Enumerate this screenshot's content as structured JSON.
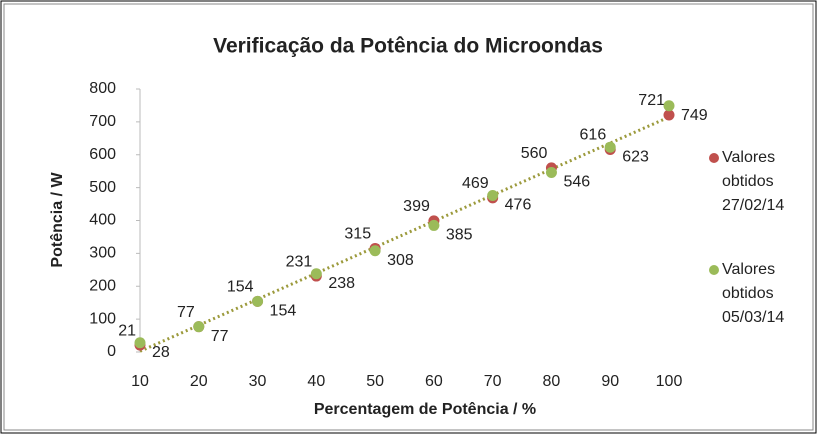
{
  "chart_data": {
    "type": "scatter",
    "title": "Verificação da Potência do Microondas",
    "x_label": "Percentagem de Potência / %",
    "y_label": "Potência / W",
    "x": [
      10,
      20,
      30,
      40,
      50,
      60,
      70,
      80,
      90,
      100
    ],
    "series": [
      {
        "name": "Valores obtidos 27/02/14",
        "color": "#c0504d",
        "values": [
          21,
          77,
          154,
          231,
          315,
          399,
          469,
          560,
          616,
          721
        ]
      },
      {
        "name": "Valores obtidos 05/03/14",
        "color": "#9bbb59",
        "values": [
          28,
          77,
          154,
          238,
          308,
          385,
          476,
          546,
          623,
          749
        ]
      }
    ],
    "xlim": [
      10,
      100
    ],
    "xticks": [
      10,
      20,
      30,
      40,
      50,
      60,
      70,
      80,
      90,
      100
    ],
    "ylim": [
      0,
      800
    ],
    "yticks": [
      0,
      100,
      200,
      300,
      400,
      500,
      600,
      700,
      800
    ],
    "trendline": {
      "color": "#9c9a3c"
    },
    "legend": "right"
  }
}
